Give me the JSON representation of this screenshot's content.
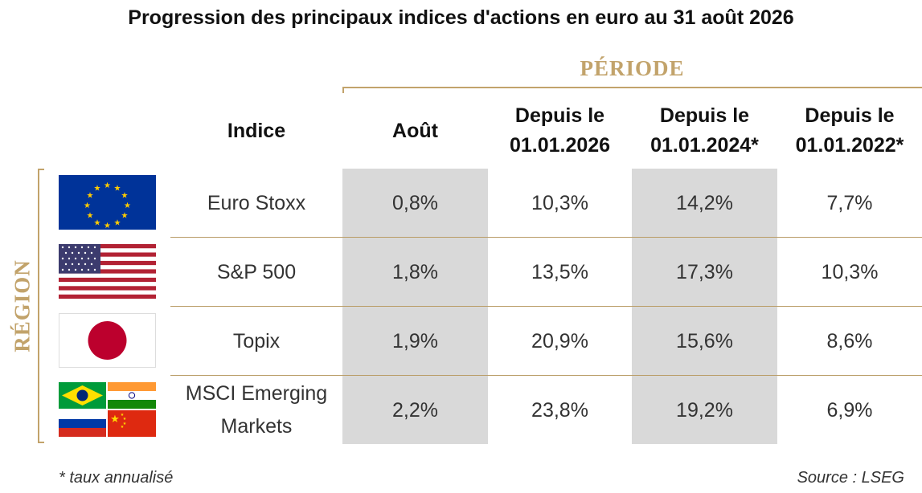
{
  "title": "Progression des principaux indices d'actions en euro au 31 août 2026",
  "group_labels": {
    "period": "PÉRIODE",
    "region": "RÉGION"
  },
  "headers": {
    "index": "Indice",
    "august": "Août",
    "since_2026": [
      "Depuis le",
      "01.01.2026"
    ],
    "since_2024": [
      "Depuis le",
      "01.01.2024*"
    ],
    "since_2022": [
      "Depuis le",
      "01.01.2022*"
    ]
  },
  "rows": [
    {
      "name": [
        "Euro Stoxx"
      ],
      "flag": "eu-flag",
      "values": [
        "0,8%",
        "10,3%",
        "14,2%",
        "7,7%"
      ]
    },
    {
      "name": [
        "S&P 500"
      ],
      "flag": "us-flag",
      "values": [
        "1,8%",
        "13,5%",
        "17,3%",
        "10,3%"
      ]
    },
    {
      "name": [
        "Topix"
      ],
      "flag": "japan-flag",
      "values": [
        "1,9%",
        "20,9%",
        "15,6%",
        "8,6%"
      ]
    },
    {
      "name": [
        "MSCI Emerging",
        "Markets"
      ],
      "flag": "emerging-flags",
      "values": [
        "2,2%",
        "23,8%",
        "19,2%",
        "6,9%"
      ]
    }
  ],
  "footnote": "* taux annualisé",
  "source": "Source : LSEG",
  "colors": {
    "accent": "#c2a36b",
    "shade": "#d9d9d9"
  },
  "chart_data": {
    "type": "table",
    "title": "Progression des principaux indices d'actions en euro au 31 août 2026",
    "columns": [
      "Indice",
      "Août",
      "Depuis le 01.01.2026",
      "Depuis le 01.01.2024*",
      "Depuis le 01.01.2022*"
    ],
    "rows": [
      [
        "Euro Stoxx",
        "0,8%",
        "10,3%",
        "14,2%",
        "7,7%"
      ],
      [
        "S&P 500",
        "1,8%",
        "13,5%",
        "17,3%",
        "10,3%"
      ],
      [
        "Topix",
        "1,9%",
        "20,9%",
        "15,6%",
        "8,6%"
      ],
      [
        "MSCI Emerging Markets",
        "2,2%",
        "23,8%",
        "19,2%",
        "6,9%"
      ]
    ],
    "series": [
      {
        "name": "Août",
        "values": [
          0.8,
          1.8,
          1.9,
          2.2
        ]
      },
      {
        "name": "Depuis le 01.01.2026",
        "values": [
          10.3,
          13.5,
          20.9,
          23.8
        ]
      },
      {
        "name": "Depuis le 01.01.2024*",
        "values": [
          14.2,
          17.3,
          15.6,
          19.2
        ]
      },
      {
        "name": "Depuis le 01.01.2022*",
        "values": [
          7.7,
          10.3,
          8.6,
          6.9
        ]
      }
    ],
    "categories": [
      "Euro Stoxx",
      "S&P 500",
      "Topix",
      "MSCI Emerging Markets"
    ]
  }
}
